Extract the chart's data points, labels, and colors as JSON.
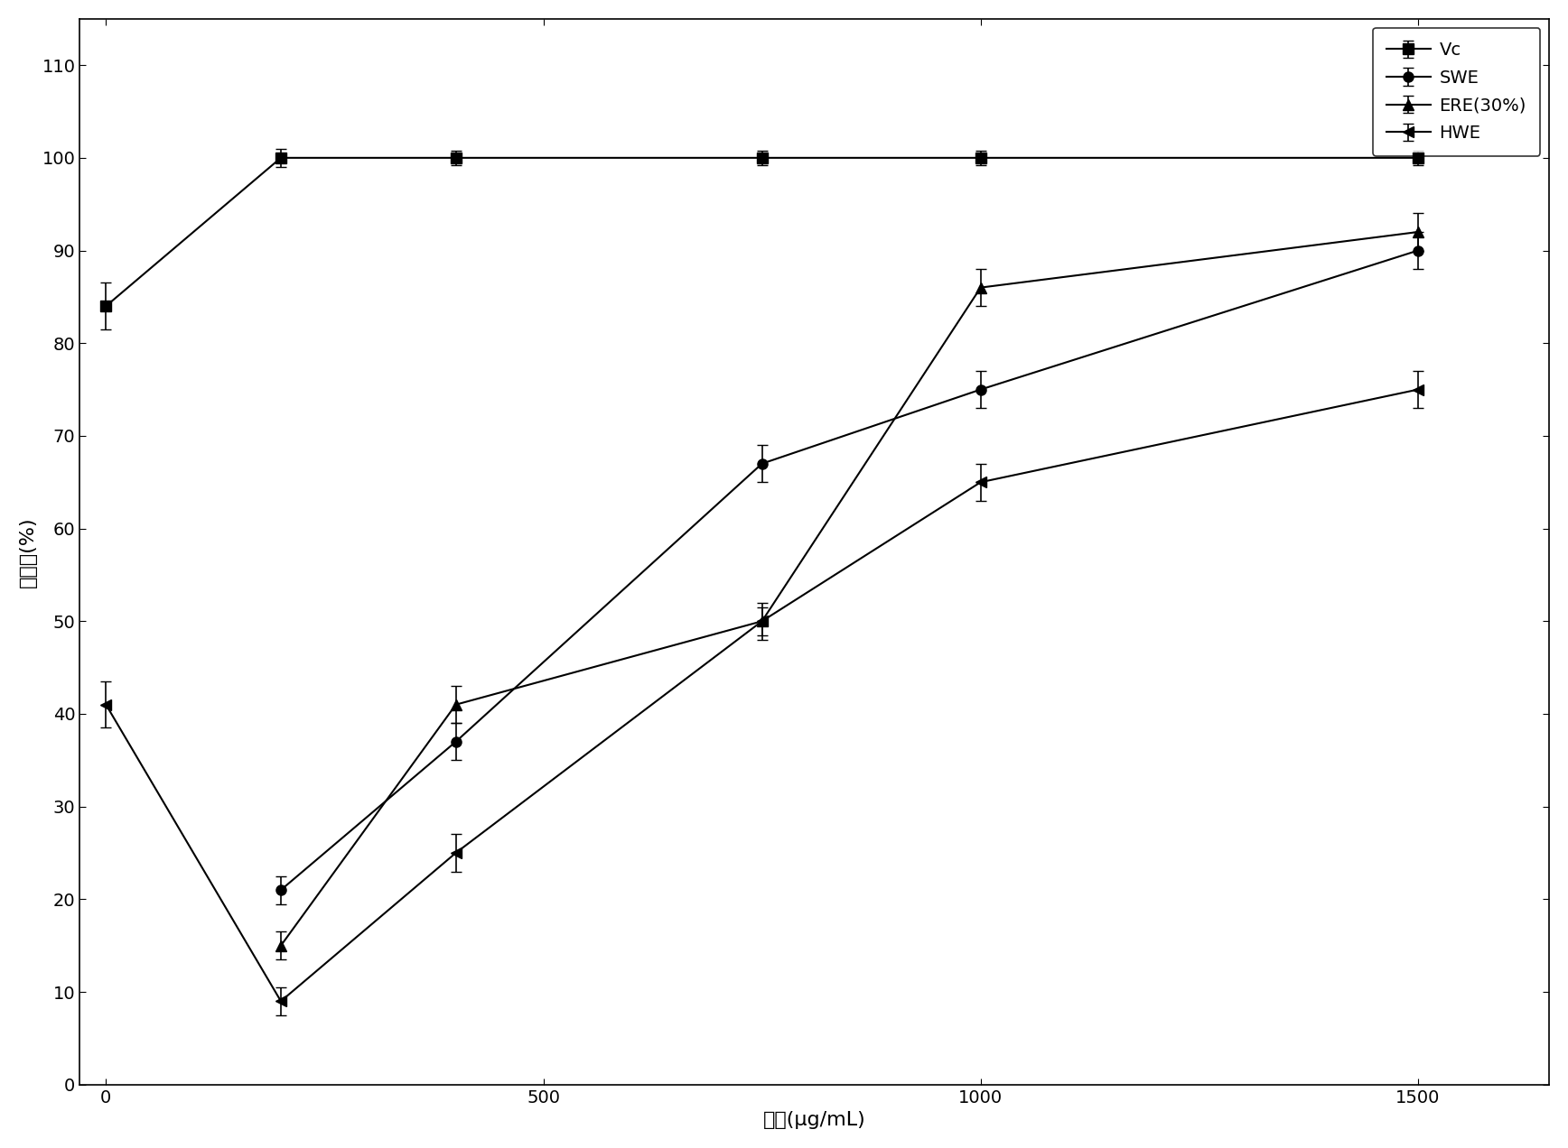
{
  "Vc_x": [
    0,
    200,
    400,
    750,
    1000,
    1500
  ],
  "Vc_y": [
    84,
    100,
    100,
    100,
    100,
    100
  ],
  "Vc_err": [
    2.5,
    1.0,
    0.8,
    0.8,
    0.8,
    0.8
  ],
  "SWE_x": [
    200,
    400,
    750,
    1000,
    1500
  ],
  "SWE_y": [
    21,
    37,
    67,
    75,
    90
  ],
  "SWE_err": [
    1.5,
    2.0,
    2.0,
    2.0,
    2.0
  ],
  "ERE30_x": [
    200,
    400,
    750,
    1000,
    1500
  ],
  "ERE30_y": [
    15,
    41,
    50,
    86,
    92
  ],
  "ERE30_err": [
    1.5,
    2.0,
    2.0,
    2.0,
    2.0
  ],
  "HWE_x": [
    0,
    200,
    400,
    750,
    1000,
    1500
  ],
  "HWE_y": [
    41,
    9,
    25,
    50,
    65,
    75
  ],
  "HWE_err": [
    2.5,
    1.5,
    2.0,
    1.5,
    2.0,
    2.0
  ],
  "xlabel": "浓度(μg/mL)",
  "ylabel": "清除率(%)",
  "ylim": [
    0,
    115
  ],
  "xlim": [
    -30,
    1650
  ],
  "yticks": [
    0,
    10,
    20,
    30,
    40,
    50,
    60,
    70,
    80,
    90,
    100,
    110
  ],
  "xticks": [
    0,
    500,
    1000,
    1500
  ],
  "legend_labels": [
    "Vc",
    "SWE",
    "ERE(30%)",
    "HWE"
  ],
  "color": "#000000",
  "linewidth": 1.5,
  "markersize": 8,
  "capsize": 4,
  "elinewidth": 1.2,
  "xlabel_fontsize": 16,
  "ylabel_fontsize": 16,
  "tick_fontsize": 14,
  "legend_fontsize": 14
}
